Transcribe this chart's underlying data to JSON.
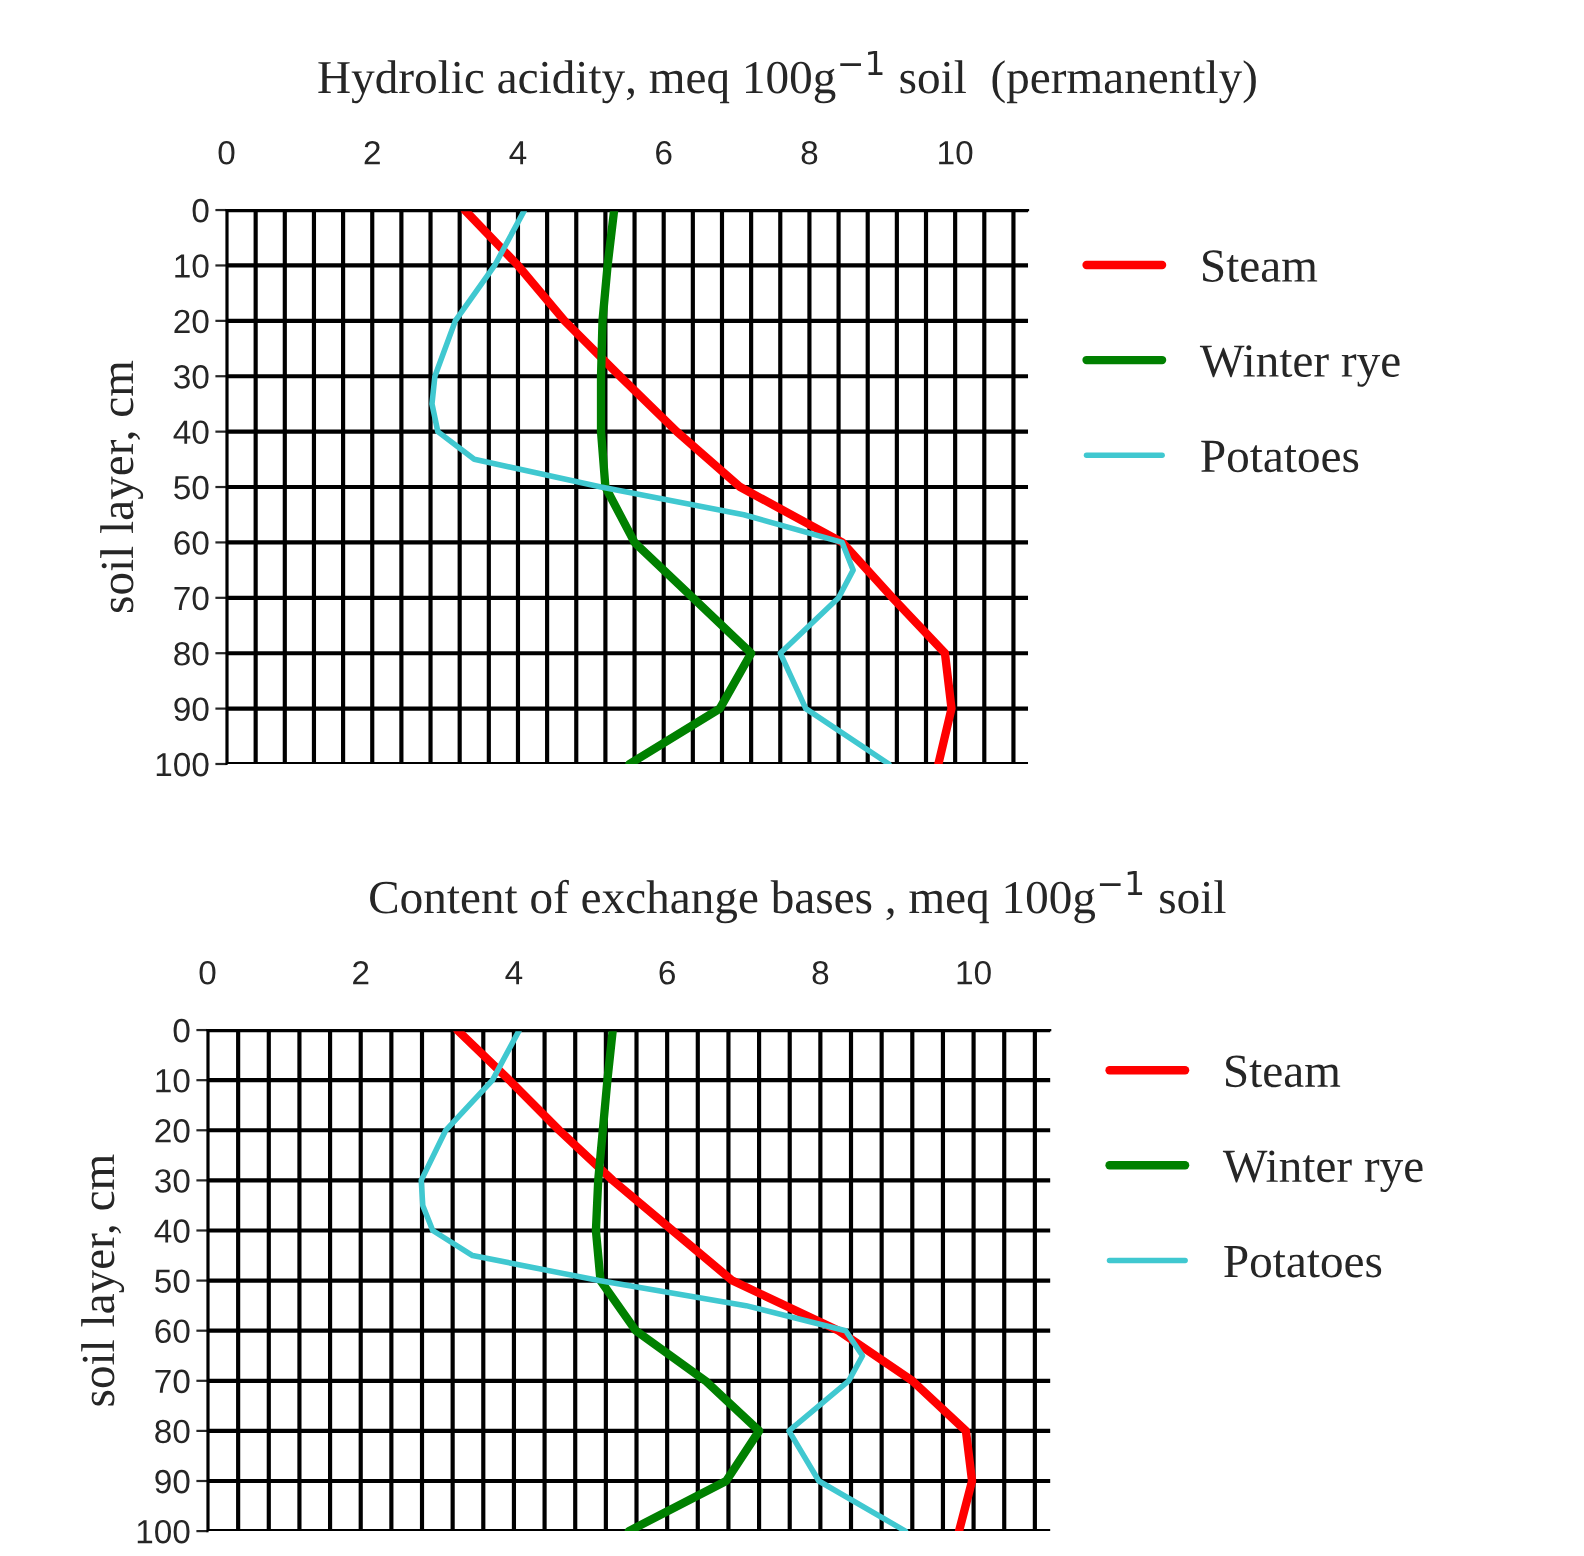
{
  "chart_data": [
    {
      "type": "line",
      "orientation": "horizontal",
      "title": "Hydrolic acidity, meq 100g$^{−1}$ soil  (permanently)",
      "ylabel": "soil layer, cm",
      "xlim": [
        0,
        11
      ],
      "ylim": [
        100,
        0
      ],
      "xticks": [
        0,
        {
          "value": 0.4,
          "label": null
        },
        {
          "value": 0.8,
          "label": null
        },
        {
          "value": 1.2,
          "label": null
        },
        {
          "value": 1.6,
          "label": null
        },
        2,
        {
          "value": 2.4,
          "label": null
        },
        {
          "value": 2.8,
          "label": null
        },
        {
          "value": 3.2,
          "label": null
        },
        {
          "value": 3.6,
          "label": null
        },
        4,
        {
          "value": 4.4,
          "label": null
        },
        {
          "value": 4.8,
          "label": null
        },
        {
          "value": 5.2,
          "label": null
        },
        {
          "value": 5.6,
          "label": null
        },
        6,
        {
          "value": 6.4,
          "label": null
        },
        {
          "value": 6.8,
          "label": null
        },
        {
          "value": 7.2,
          "label": null
        },
        {
          "value": 7.6,
          "label": null
        },
        8,
        {
          "value": 8.4,
          "label": null
        },
        {
          "value": 8.8,
          "label": null
        },
        {
          "value": 9.2,
          "label": null
        },
        {
          "value": 9.6,
          "label": null
        },
        10,
        {
          "value": 10.4,
          "label": null
        },
        {
          "value": 10.8,
          "label": null
        }
      ],
      "yticks": [
        0,
        10,
        20,
        30,
        40,
        50,
        60,
        70,
        80,
        90,
        100
      ],
      "grid": true,
      "legend": "right",
      "series": [
        {
          "name": "Steam",
          "color": "#ff0000",
          "x": [
            0,
            10,
            20,
            30,
            40,
            50,
            60,
            70,
            80,
            90,
            100
          ],
          "values": [
            3.27,
            4.0,
            4.64,
            5.4,
            6.18,
            7.05,
            8.45,
            9.14,
            9.86,
            9.95,
            9.77
          ]
        },
        {
          "name": "Winter rye",
          "color": "#008000",
          "x": [
            0,
            10,
            20,
            30,
            40,
            50,
            60,
            70,
            80,
            90,
            100
          ],
          "values": [
            5.32,
            5.23,
            5.16,
            5.14,
            5.14,
            5.2,
            5.6,
            6.4,
            7.2,
            6.77,
            5.53
          ]
        },
        {
          "name": "Potatoes",
          "color": "#40c8d0",
          "x": [
            0,
            10,
            20,
            30,
            35,
            40,
            45,
            50,
            55,
            60,
            65,
            70,
            80,
            90,
            100
          ],
          "values": [
            4.09,
            3.68,
            3.14,
            2.86,
            2.82,
            2.9,
            3.4,
            5.14,
            7.1,
            8.45,
            8.6,
            8.4,
            7.6,
            7.95,
            9.09
          ]
        }
      ]
    },
    {
      "type": "line",
      "orientation": "horizontal",
      "title": "Content of exchange bases , meq 100g$^{−1}$ soil",
      "ylabel": "soil layer, cm",
      "xlim": [
        0,
        11
      ],
      "ylim": [
        100,
        0
      ],
      "xticks": [
        0,
        {
          "value": 0.4,
          "label": null
        },
        {
          "value": 0.8,
          "label": null
        },
        {
          "value": 1.2,
          "label": null
        },
        {
          "value": 1.6,
          "label": null
        },
        2,
        {
          "value": 2.4,
          "label": null
        },
        {
          "value": 2.8,
          "label": null
        },
        {
          "value": 3.2,
          "label": null
        },
        {
          "value": 3.6,
          "label": null
        },
        4,
        {
          "value": 4.4,
          "label": null
        },
        {
          "value": 4.8,
          "label": null
        },
        {
          "value": 5.2,
          "label": null
        },
        {
          "value": 5.6,
          "label": null
        },
        6,
        {
          "value": 6.4,
          "label": null
        },
        {
          "value": 6.8,
          "label": null
        },
        {
          "value": 7.2,
          "label": null
        },
        {
          "value": 7.6,
          "label": null
        },
        8,
        {
          "value": 8.4,
          "label": null
        },
        {
          "value": 8.8,
          "label": null
        },
        {
          "value": 9.2,
          "label": null
        },
        {
          "value": 9.6,
          "label": null
        },
        10,
        {
          "value": 10.4,
          "label": null
        },
        {
          "value": 10.8,
          "label": null
        }
      ],
      "yticks": [
        0,
        10,
        20,
        30,
        40,
        50,
        60,
        70,
        80,
        90,
        100
      ],
      "grid": true,
      "legend": "right",
      "series": [
        {
          "name": "Steam",
          "color": "#ff0000",
          "x": [
            0,
            10,
            20,
            30,
            40,
            50,
            60,
            70,
            80,
            90,
            100
          ],
          "values": [
            3.26,
            3.94,
            4.59,
            5.29,
            6.07,
            6.85,
            8.24,
            9.2,
            9.9,
            9.98,
            9.81
          ]
        },
        {
          "name": "Winter rye",
          "color": "#008000",
          "x": [
            0,
            10,
            20,
            30,
            40,
            50,
            60,
            70,
            80,
            90,
            100
          ],
          "values": [
            5.29,
            5.22,
            5.16,
            5.1,
            5.07,
            5.13,
            5.59,
            6.5,
            7.2,
            6.77,
            5.5
          ]
        },
        {
          "name": "Potatoes",
          "color": "#40c8d0",
          "x": [
            0,
            10,
            20,
            30,
            35,
            40,
            45,
            50,
            55,
            60,
            65,
            70,
            80,
            90,
            100
          ],
          "values": [
            4.07,
            3.72,
            3.11,
            2.79,
            2.81,
            2.94,
            3.46,
            5.11,
            7.03,
            8.33,
            8.55,
            8.37,
            7.59,
            7.98,
            9.11
          ]
        }
      ]
    }
  ]
}
